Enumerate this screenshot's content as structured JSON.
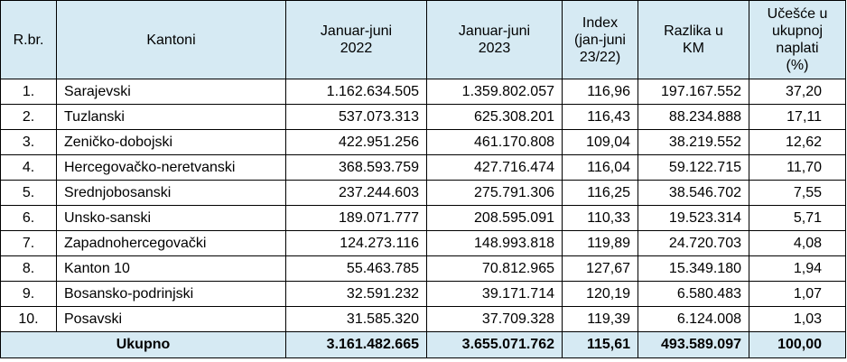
{
  "headers": {
    "rbr": "R.br.",
    "kantoni": "Kantoni",
    "jan2022": [
      "Januar-juni",
      "2022"
    ],
    "jan2023": [
      "Januar-juni",
      "2023"
    ],
    "index": [
      "Index",
      "(jan-juni",
      "23/22)"
    ],
    "razlika": [
      "Razlika u",
      "KM"
    ],
    "ucesce": [
      "Učešće u",
      "ukupnoj",
      "naplati",
      "(%)"
    ]
  },
  "rows": [
    {
      "rb": "1.",
      "name": "Sarajevski",
      "v2022": "1.162.634.505",
      "v2023": "1.359.802.057",
      "index": "116,96",
      "razlika": "197.167.552",
      "ucesce": "37,20"
    },
    {
      "rb": "2.",
      "name": "Tuzlanski",
      "v2022": "537.073.313",
      "v2023": "625.308.201",
      "index": "116,43",
      "razlika": "88.234.888",
      "ucesce": "17,11"
    },
    {
      "rb": "3.",
      "name": "Zeničko-dobojski",
      "v2022": "422.951.256",
      "v2023": "461.170.808",
      "index": "109,04",
      "razlika": "38.219.552",
      "ucesce": "12,62"
    },
    {
      "rb": "4.",
      "name": "Hercegovačko-neretvanski",
      "v2022": "368.593.759",
      "v2023": "427.716.474",
      "index": "116,04",
      "razlika": "59.122.715",
      "ucesce": "11,70"
    },
    {
      "rb": "5.",
      "name": "Srednjobosanski",
      "v2022": "237.244.603",
      "v2023": "275.791.306",
      "index": "116,25",
      "razlika": "38.546.702",
      "ucesce": "7,55"
    },
    {
      "rb": "6.",
      "name": "Unsko-sanski",
      "v2022": "189.071.777",
      "v2023": "208.595.091",
      "index": "110,33",
      "razlika": "19.523.314",
      "ucesce": "5,71"
    },
    {
      "rb": "7.",
      "name": "Zapadnohercegovački",
      "v2022": "124.273.116",
      "v2023": "148.993.818",
      "index": "119,89",
      "razlika": "24.720.703",
      "ucesce": "4,08"
    },
    {
      "rb": "8.",
      "name": "Kanton 10",
      "v2022": "55.463.785",
      "v2023": "70.812.965",
      "index": "127,67",
      "razlika": "15.349.180",
      "ucesce": "1,94"
    },
    {
      "rb": "9.",
      "name": "Bosansko-podrinjski",
      "v2022": "32.591.232",
      "v2023": "39.171.714",
      "index": "120,19",
      "razlika": "6.580.483",
      "ucesce": "1,07"
    },
    {
      "rb": "10.",
      "name": "Posavski",
      "v2022": "31.585.320",
      "v2023": "37.709.328",
      "index": "119,39",
      "razlika": "6.124.008",
      "ucesce": "1,03"
    }
  ],
  "total": {
    "label": "Ukupno",
    "v2022": "3.161.482.665",
    "v2023": "3.655.071.762",
    "index": "115,61",
    "razlika": "493.589.097",
    "ucesce": "100,00"
  }
}
